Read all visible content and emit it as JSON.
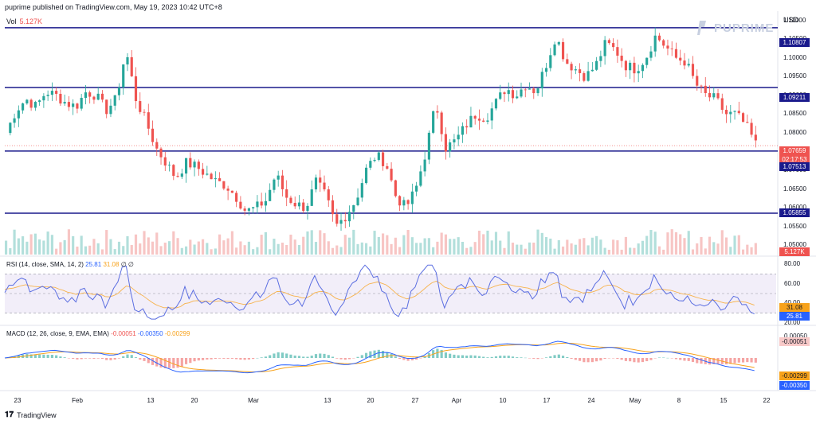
{
  "header": {
    "published_text": "puprime published on TradingView.com, May 19, 2023 10:42 UTC+8"
  },
  "volume": {
    "label": "Vol",
    "value": "5.127K"
  },
  "price_axis": {
    "currency": "USD",
    "ticks": [
      "1.11000",
      "1.10500",
      "1.10000",
      "1.09500",
      "1.09000",
      "1.08500",
      "1.08000",
      "1.07500",
      "1.07000",
      "1.06500",
      "1.06000",
      "1.05500",
      "1.05000"
    ]
  },
  "logo": {
    "text": "PUPRIME"
  },
  "levels": {
    "r1": "1.10807",
    "r2": "1.09211",
    "current": "1.07659",
    "countdown": "02:17:53",
    "s1": "1.07513",
    "s2": "1.05855",
    "vol_tag": "5.127K"
  },
  "rsi": {
    "label": "RSI (14, close, SMA, 14, 2)",
    "value1": "25.81",
    "value2": "31.08",
    "extra": "∅ ∅",
    "ticks": [
      "80.00",
      "60.00",
      "40.00",
      "20.00"
    ],
    "tag_signal": "31.08",
    "tag_rsi": "25.81"
  },
  "macd": {
    "label": "MACD (12, 26, close, 9, EMA, EMA)",
    "hist": "-0.00051",
    "macd": "-0.00350",
    "signal": "-0.00299",
    "tick_top": "0.00050",
    "tag_hist": "-0.00051",
    "tag_signal": "-0.00299",
    "tag_macd": "-0.00350"
  },
  "time_axis": [
    "23",
    "Feb",
    "13",
    "20",
    "Mar",
    "13",
    "20",
    "27",
    "Apr",
    "10",
    "17",
    "24",
    "May",
    "8",
    "15",
    "22"
  ],
  "footer": {
    "brand": "TradingView"
  },
  "colors": {
    "up": "#26a69a",
    "down": "#ef5350",
    "level_line": "#1a1a8c",
    "rsi_line": "#5b6ee1",
    "rsi_signal": "#f7b24a",
    "macd_line": "#2962ff",
    "signal_line": "#f7a21b"
  },
  "chart_data": {
    "type": "candlestick",
    "symbol_quote": "USD",
    "ylim": [
      1.0475,
      1.1125
    ],
    "ohlc_close_approx": [
      1.08,
      1.086,
      1.089,
      1.087,
      1.091,
      1.09,
      1.088,
      1.087,
      1.091,
      1.09,
      1.086,
      1.089,
      1.102,
      1.089,
      1.083,
      1.076,
      1.072,
      1.068,
      1.072,
      1.071,
      1.069,
      1.067,
      1.066,
      1.063,
      1.059,
      1.06,
      1.062,
      1.069,
      1.063,
      1.061,
      1.06,
      1.067,
      1.063,
      1.055,
      1.058,
      1.062,
      1.07,
      1.074,
      1.072,
      1.063,
      1.06,
      1.065,
      1.075,
      1.088,
      1.076,
      1.078,
      1.082,
      1.085,
      1.084,
      1.088,
      1.092,
      1.09,
      1.093,
      1.091,
      1.098,
      1.106,
      1.099,
      1.097,
      1.095,
      1.098,
      1.104,
      1.102,
      1.098,
      1.097,
      1.1,
      1.106,
      1.103,
      1.1,
      1.099,
      1.093,
      1.09,
      1.089,
      1.085,
      1.085,
      1.082,
      1.077
    ],
    "support_resistance": [
      1.10807,
      1.09211,
      1.07513,
      1.05855
    ],
    "rsi_range": [
      20,
      80
    ],
    "rsi_levels": [
      70,
      50,
      30
    ]
  }
}
